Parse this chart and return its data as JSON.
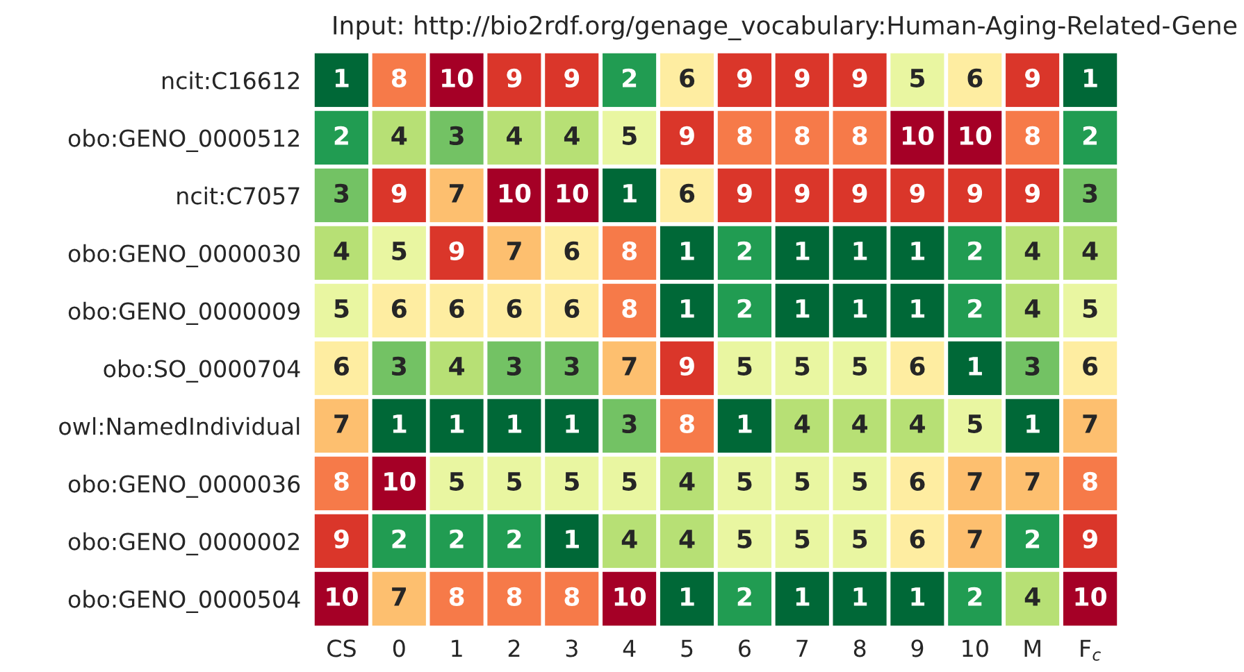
{
  "chart_data": {
    "type": "heatmap",
    "title": "Input: http://bio2rdf.org/genage_vocabulary:Human-Aging-Related-Gene",
    "categories": [
      "CS",
      "0",
      "1",
      "2",
      "3",
      "4",
      "5",
      "6",
      "7",
      "8",
      "9",
      "10",
      "M",
      "F$_{c}$"
    ],
    "y_categories": [
      "ncit:C16612",
      "obo:GENO_0000512",
      "ncit:C7057",
      "obo:GENO_0000030",
      "obo:GENO_0000009",
      "obo:SO_0000704",
      "owl:NamedIndividual",
      "obo:GENO_0000036",
      "obo:GENO_0000002",
      "obo:GENO_0000504"
    ],
    "cells": [
      [
        1,
        8,
        10,
        9,
        9,
        2,
        6,
        9,
        9,
        9,
        5,
        6,
        9,
        1
      ],
      [
        2,
        4,
        3,
        4,
        4,
        5,
        9,
        8,
        8,
        8,
        10,
        10,
        8,
        2
      ],
      [
        3,
        9,
        7,
        10,
        10,
        1,
        6,
        9,
        9,
        9,
        9,
        9,
        9,
        3
      ],
      [
        4,
        5,
        9,
        7,
        6,
        8,
        1,
        2,
        1,
        1,
        1,
        2,
        4,
        4
      ],
      [
        5,
        6,
        6,
        6,
        6,
        8,
        1,
        2,
        1,
        1,
        1,
        2,
        4,
        5
      ],
      [
        6,
        3,
        4,
        3,
        3,
        7,
        9,
        5,
        5,
        5,
        6,
        1,
        3,
        6
      ],
      [
        7,
        1,
        1,
        1,
        1,
        3,
        8,
        1,
        4,
        4,
        4,
        5,
        1,
        7
      ],
      [
        8,
        10,
        5,
        5,
        5,
        5,
        4,
        5,
        5,
        5,
        6,
        7,
        7,
        8
      ],
      [
        9,
        2,
        2,
        2,
        1,
        4,
        4,
        5,
        5,
        5,
        6,
        7,
        2,
        9
      ],
      [
        10,
        7,
        8,
        8,
        8,
        10,
        1,
        2,
        1,
        1,
        1,
        2,
        4,
        10
      ]
    ],
    "data_labels": true
  }
}
